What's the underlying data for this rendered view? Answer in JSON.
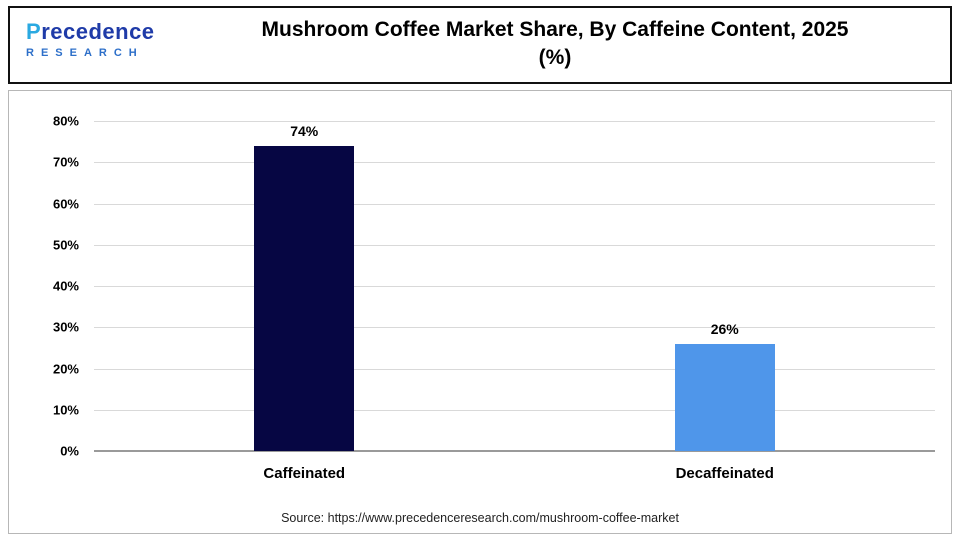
{
  "header": {
    "title_line1": "Mushroom Coffee Market Share, By Caffeine Content, 2025",
    "title_line2": "(%)",
    "logo": {
      "line1": "Precedence",
      "line2": "RESEARCH",
      "brand_blue": "#1f3ba8",
      "brand_light_blue": "#2aa9e1"
    }
  },
  "chart_data": {
    "type": "bar",
    "title": "Mushroom Coffee Market Share, By Caffeine Content, 2025 (%)",
    "categories": [
      "Caffeinated",
      "Decaffeinated"
    ],
    "values": [
      74,
      26
    ],
    "value_labels": [
      "74%",
      "26%"
    ],
    "bar_colors": [
      "#060643",
      "#4f96ea"
    ],
    "xlabel": "",
    "ylabel": "",
    "ylim": [
      0,
      80
    ],
    "yticks": [
      0,
      10,
      20,
      30,
      40,
      50,
      60,
      70,
      80
    ],
    "ytick_labels": [
      "0%",
      "10%",
      "20%",
      "30%",
      "40%",
      "50%",
      "60%",
      "70%",
      "80%"
    ],
    "grid": true,
    "legend": false
  },
  "footer": {
    "source": "Source: https://www.precedenceresearch.com/mushroom-coffee-market"
  }
}
